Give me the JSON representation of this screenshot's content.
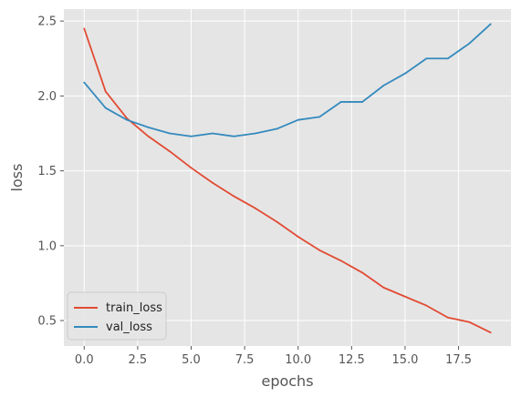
{
  "chart_data": {
    "type": "line",
    "title": "",
    "xlabel": "epochs",
    "ylabel": "loss",
    "xlim": [
      -0.95,
      19.95
    ],
    "ylim": [
      0.33,
      2.58
    ],
    "x_ticks": [
      0,
      2.5,
      5,
      7.5,
      10,
      12.5,
      15,
      17.5
    ],
    "x_tick_labels": [
      "0.0",
      "2.5",
      "5.0",
      "7.5",
      "10.0",
      "12.5",
      "15.0",
      "17.5"
    ],
    "y_ticks": [
      0.5,
      1.0,
      1.5,
      2.0,
      2.5
    ],
    "y_tick_labels": [
      "0.5",
      "1.0",
      "1.5",
      "2.0",
      "2.5"
    ],
    "grid": true,
    "legend_position": "lower-left",
    "x": [
      0,
      1,
      2,
      3,
      4,
      5,
      6,
      7,
      8,
      9,
      10,
      11,
      12,
      13,
      14,
      15,
      16,
      17,
      18,
      19
    ],
    "series": [
      {
        "name": "train_loss",
        "color": "#E24A33",
        "values": [
          2.45,
          2.03,
          1.85,
          1.73,
          1.63,
          1.52,
          1.42,
          1.33,
          1.25,
          1.16,
          1.06,
          0.97,
          0.9,
          0.82,
          0.72,
          0.66,
          0.6,
          0.52,
          0.49,
          0.42
        ]
      },
      {
        "name": "val_loss",
        "color": "#348ABD",
        "values": [
          2.09,
          1.92,
          1.84,
          1.79,
          1.75,
          1.73,
          1.75,
          1.73,
          1.75,
          1.78,
          1.84,
          1.86,
          1.96,
          1.96,
          2.07,
          2.15,
          2.25,
          2.25,
          2.35,
          2.48
        ]
      }
    ]
  }
}
